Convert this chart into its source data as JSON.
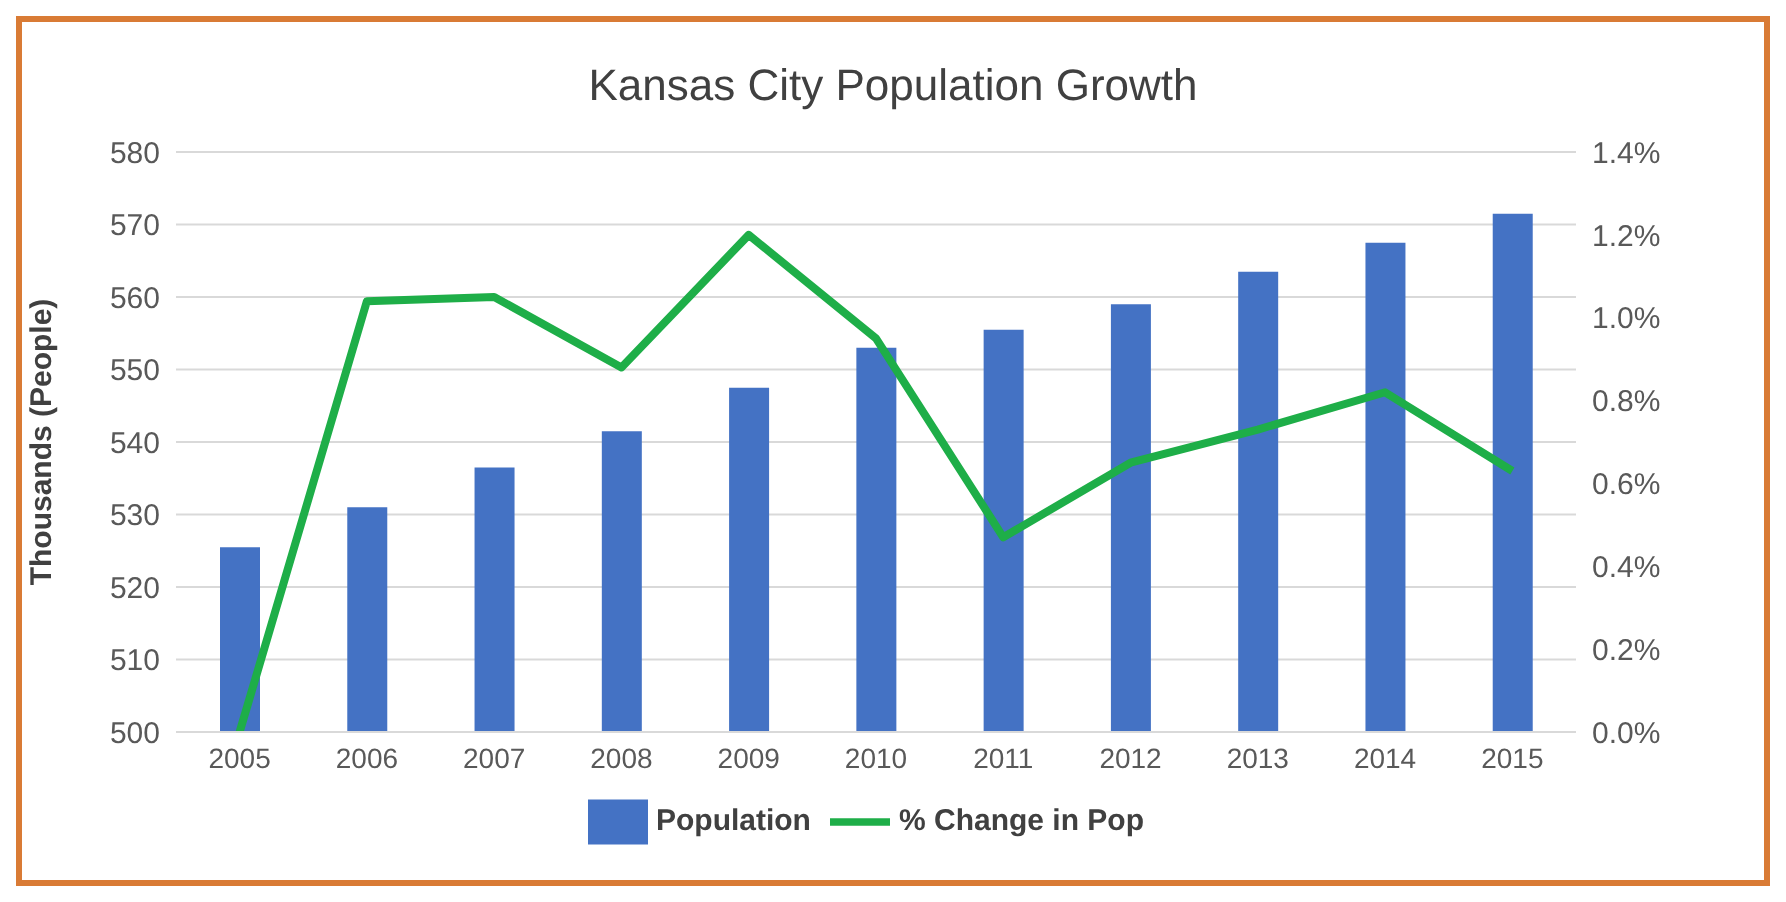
{
  "chart_data": {
    "type": "bar",
    "title": "Kansas City Population Growth",
    "ylabel": "Thousands (People)",
    "categories": [
      "2005",
      "2006",
      "2007",
      "2008",
      "2009",
      "2010",
      "2011",
      "2012",
      "2013",
      "2014",
      "2015"
    ],
    "series": [
      {
        "name": "Population",
        "color": "#4472c4",
        "values": [
          525.5,
          531,
          536.5,
          541.5,
          547.5,
          553,
          555.5,
          559,
          563.5,
          567.5,
          571.5
        ]
      },
      {
        "name": "% Change in Pop",
        "type": "line",
        "axis": "y2",
        "color": "#1eae48",
        "values": [
          0.0,
          1.04,
          1.05,
          0.88,
          1.2,
          0.95,
          0.47,
          0.65,
          0.73,
          0.82,
          0.63
        ]
      }
    ],
    "ylim": [
      500,
      580
    ],
    "yticks": [
      500,
      510,
      520,
      530,
      540,
      550,
      560,
      570,
      580
    ],
    "y2lim": [
      0,
      1.4
    ],
    "y2ticks": [
      {
        "value": 0,
        "label": "0.0%"
      },
      {
        "value": 0.2,
        "label": "0.2%"
      },
      {
        "value": 0.4,
        "label": "0.4%"
      },
      {
        "value": 0.6,
        "label": "0.6%"
      },
      {
        "value": 0.8,
        "label": "0.8%"
      },
      {
        "value": 1.0,
        "label": "1.0%"
      },
      {
        "value": 1.2,
        "label": "1.2%"
      },
      {
        "value": 1.4,
        "label": "1.4%"
      }
    ],
    "grid": "y",
    "legend": "bottom",
    "marker": "none",
    "line_style": "solid"
  }
}
